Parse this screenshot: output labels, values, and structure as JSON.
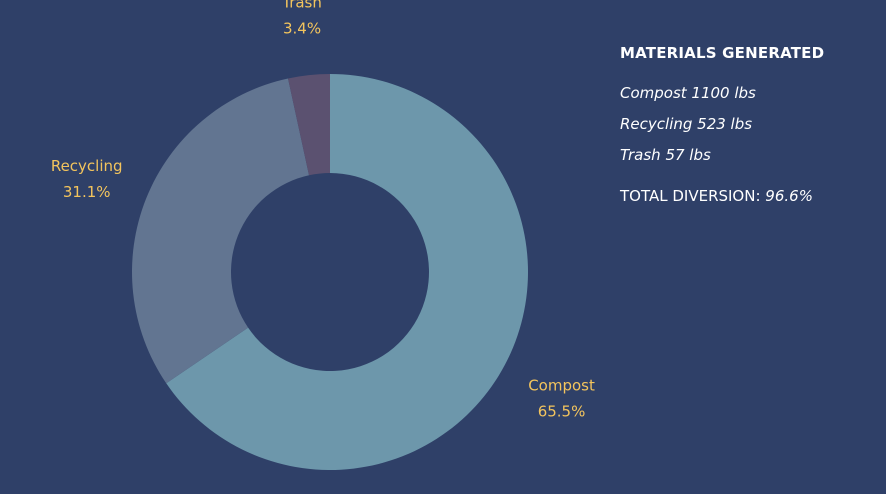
{
  "chart_data": {
    "type": "pie",
    "subtype": "donut",
    "slices": [
      {
        "name": "Compost",
        "percent": 65.5,
        "percent_label": "65.5%",
        "color": "#6d97ab"
      },
      {
        "name": "Recycling",
        "percent": 31.1,
        "percent_label": "31.1%",
        "color": "#627591"
      },
      {
        "name": "Trash",
        "percent": 3.4,
        "percent_label": "3.4%",
        "color": "#5b5170"
      }
    ],
    "label_color": "#f3c45d"
  },
  "panel": {
    "title": "MATERIALS GENERATED",
    "items": [
      {
        "text": "Compost 1100 lbs"
      },
      {
        "text": "Recycling 523 lbs"
      },
      {
        "text": "Trash 57 lbs"
      }
    ],
    "total_label": "TOTAL DIVERSION:",
    "total_value": "96.6%"
  },
  "colors": {
    "background": "#2f4068",
    "text": "#ffffff",
    "accent": "#f3c45d"
  }
}
